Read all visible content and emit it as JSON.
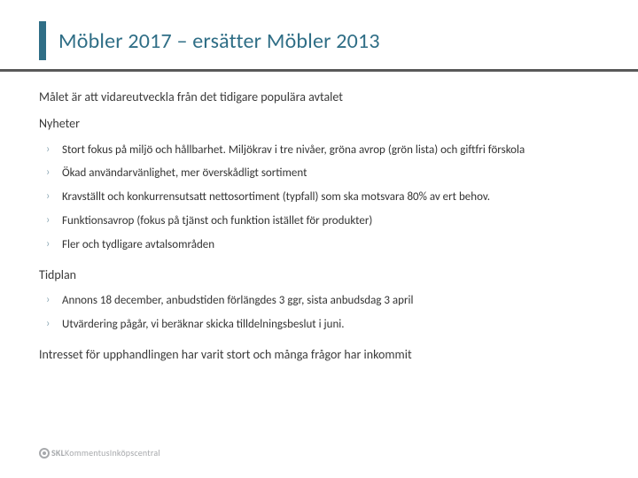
{
  "colors": {
    "accent_bar": "#2f6e86",
    "title_color": "#2f6e86",
    "grayband": "#595959",
    "heading_color": "#3a3a3a",
    "body_color": "#333333",
    "bullet_marker": "#8aa6b3",
    "footer_gray": "#a7a9ac"
  },
  "title": "Möbler 2017 – ersätter Möbler 2013",
  "lead": "Målet är att vidareutveckla från det tidigare populära avtalet",
  "sections": {
    "nyheter": {
      "heading": "Nyheter",
      "items": [
        "Stort fokus på miljö och hållbarhet. Miljökrav i tre nivåer, gröna avrop (grön lista) och giftfri förskola",
        "Ökad användarvänlighet, mer överskådligt sortiment",
        "Kravställt och konkurrensutsatt nettosortiment (typfall) som ska motsvara 80% av ert behov.",
        "Funktionsavrop (fokus på tjänst och funktion istället för produkter)",
        "Fler och tydligare avtalsområden"
      ]
    },
    "tidplan": {
      "heading": "Tidplan",
      "items": [
        "Annons 18 december, anbudstiden förlängdes 3 ggr, sista anbudsdag 3 april",
        "Utvärdering pågår, vi beräknar skicka tilldelningsbeslut i juni."
      ]
    }
  },
  "closing": "Intresset för upphandlingen har varit stort och många frågor har inkommit",
  "footer": {
    "brand_bold": "SKL",
    "brand_rest": "KommentusInköpscentral"
  }
}
